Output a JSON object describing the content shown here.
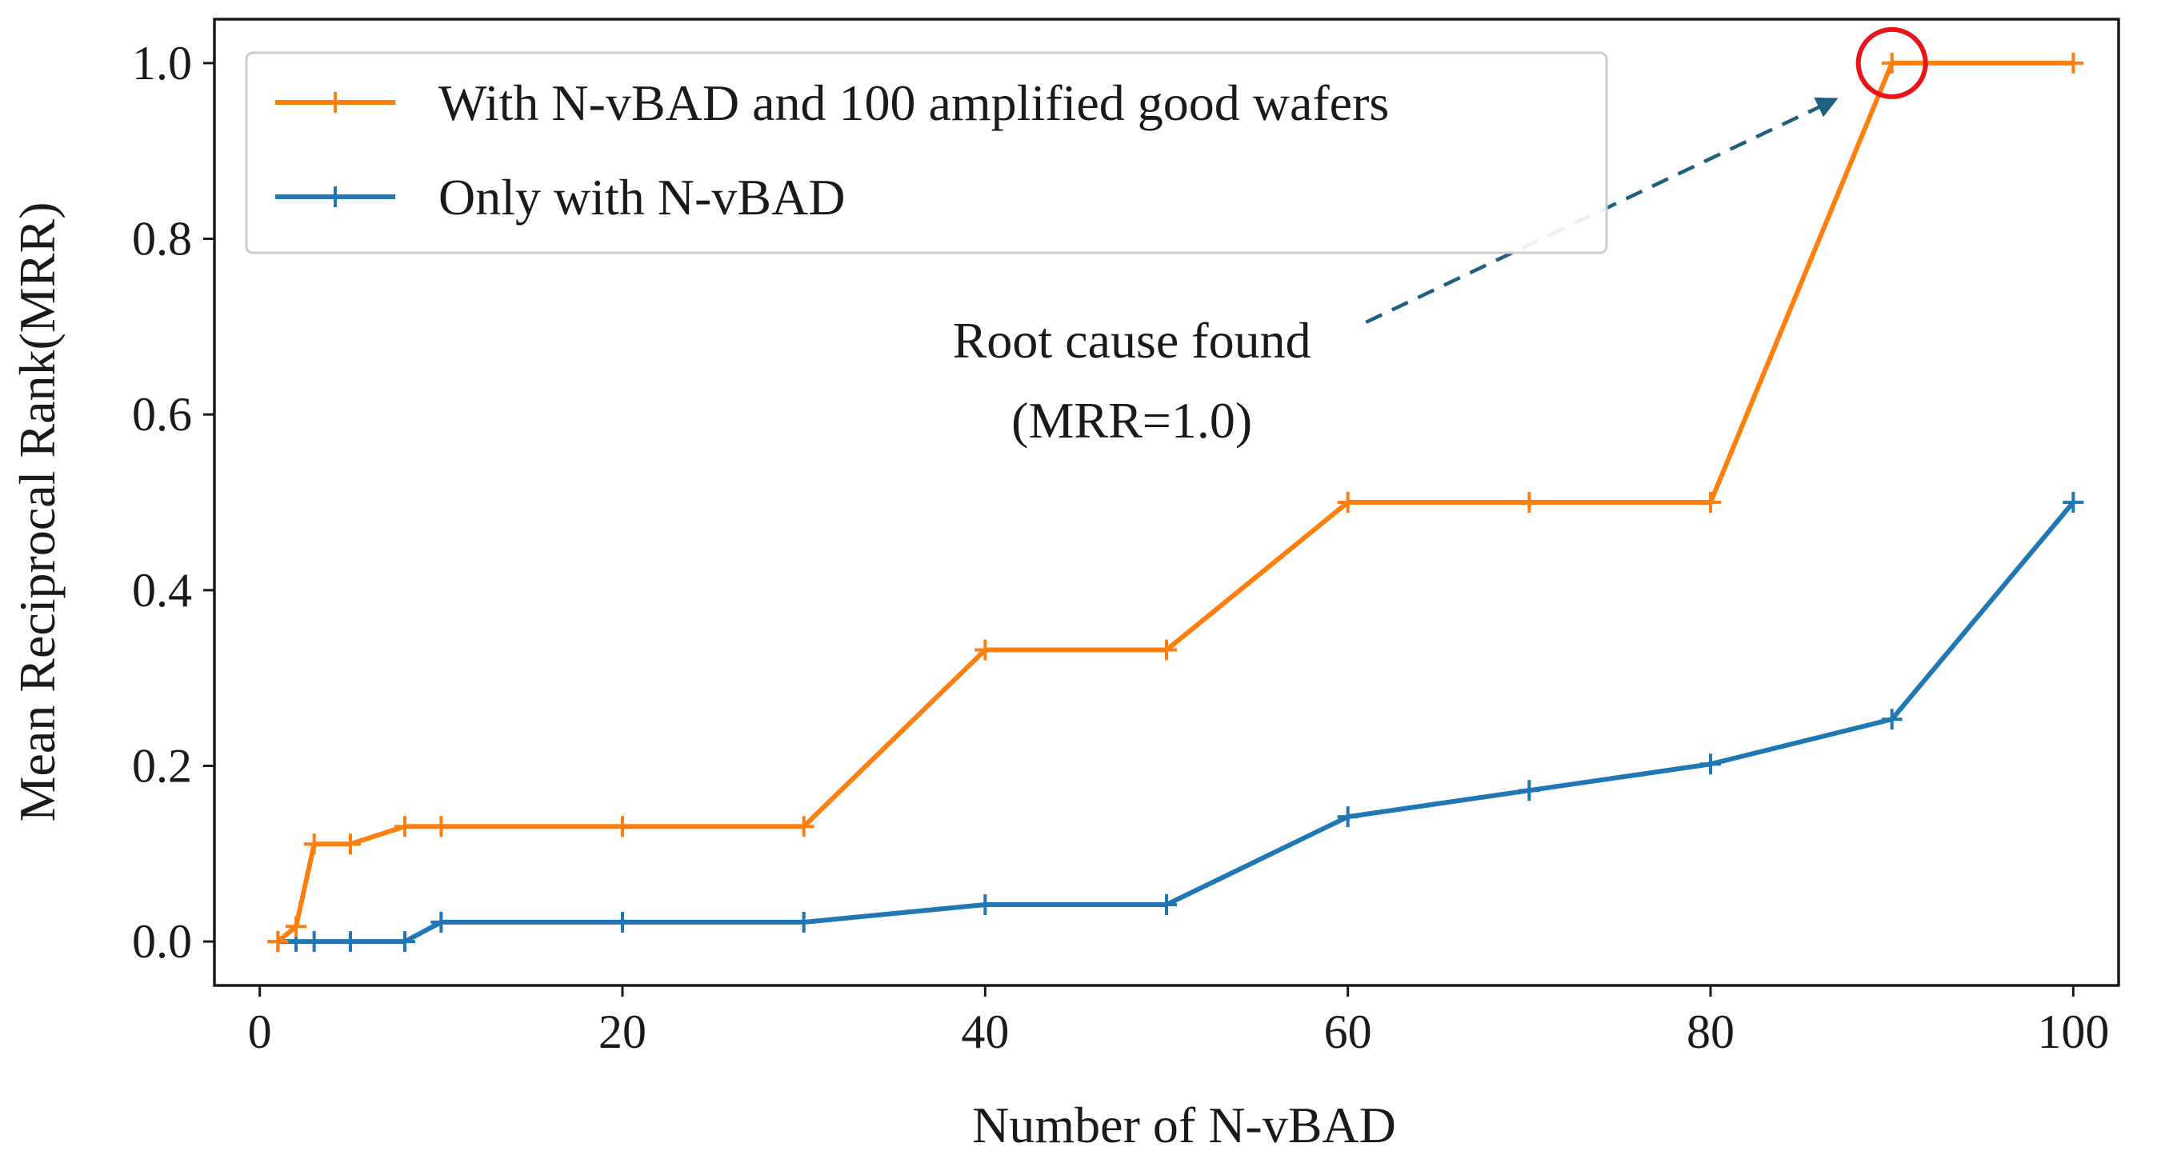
{
  "chart_data": {
    "type": "line",
    "title": "",
    "xlabel": "Number of N-vBAD",
    "ylabel": "Mean Reciprocal Rank(MRR)",
    "xlim": [
      -2.5,
      102.5
    ],
    "ylim": [
      -0.05,
      1.05
    ],
    "xticks": [
      0,
      20,
      40,
      60,
      80,
      100
    ],
    "xtick_labels": [
      "0",
      "20",
      "40",
      "60",
      "80",
      "100"
    ],
    "yticks": [
      0.0,
      0.2,
      0.4,
      0.6,
      0.8,
      1.0
    ],
    "ytick_labels": [
      "0.0",
      "0.2",
      "0.4",
      "0.6",
      "0.8",
      "1.0"
    ],
    "grid": false,
    "legend_position": "top-left",
    "series": [
      {
        "name": "With N-vBAD and 100 amplified good wafers",
        "color": "#ff7f0e",
        "marker": "plus",
        "x": [
          1,
          2,
          3,
          5,
          8,
          10,
          20,
          30,
          40,
          50,
          60,
          70,
          80,
          90,
          100
        ],
        "y": [
          0.0,
          0.017,
          0.111,
          0.111,
          0.131,
          0.131,
          0.131,
          0.131,
          0.332,
          0.332,
          0.5,
          0.5,
          0.5,
          1.0,
          1.0
        ]
      },
      {
        "name": "Only with N-vBAD",
        "color": "#1f77b4",
        "marker": "plus",
        "x": [
          1,
          2,
          3,
          5,
          8,
          10,
          20,
          30,
          40,
          50,
          60,
          70,
          80,
          90,
          100
        ],
        "y": [
          0.0,
          0.0,
          0.0,
          0.0,
          0.0,
          0.022,
          0.022,
          0.022,
          0.042,
          0.042,
          0.142,
          0.172,
          0.202,
          0.253,
          0.5
        ]
      }
    ],
    "annotations": [
      {
        "lines": [
          "Root cause found",
          "(MRR=1.0)"
        ],
        "text_anchor_x": 60,
        "text_anchor_y": 0.665,
        "arrow_from_x": 61,
        "arrow_from_y": 0.705,
        "arrow_to_x": 86.5,
        "arrow_to_y": 0.955,
        "arrow_color": "#1f5f7f",
        "highlight_x": 90,
        "highlight_y": 1.0,
        "highlight_color": "#e8141a"
      }
    ]
  }
}
